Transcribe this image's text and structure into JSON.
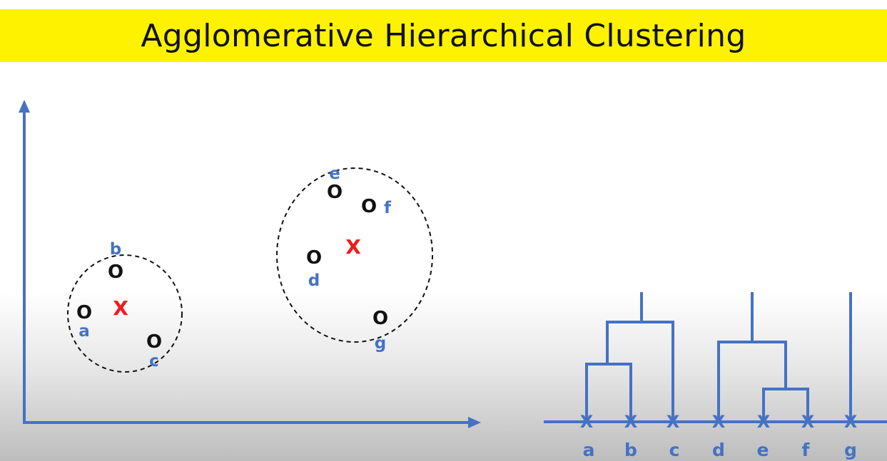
{
  "title": "Agglomerative Hierarchical Clustering",
  "colors": {
    "title_bg": "#fff200",
    "axis": "#4472c4",
    "label": "#4472c4",
    "point": "#111111",
    "centroid": "#ee1c1c",
    "dendrogram": "#4472c4"
  },
  "point_marker": "O",
  "centroid_marker": "X",
  "points": [
    {
      "id": "a",
      "label": "a"
    },
    {
      "id": "b",
      "label": "b"
    },
    {
      "id": "c",
      "label": "c"
    },
    {
      "id": "d",
      "label": "d"
    },
    {
      "id": "e",
      "label": "e"
    },
    {
      "id": "f",
      "label": "f"
    },
    {
      "id": "g",
      "label": "g"
    }
  ],
  "clusters": [
    {
      "members": [
        "a",
        "b",
        "c"
      ]
    },
    {
      "members": [
        "d",
        "e",
        "f",
        "g"
      ]
    }
  ],
  "dendrogram": {
    "leaves": [
      "a",
      "b",
      "c",
      "d",
      "e",
      "f",
      "g"
    ],
    "leaf_marker": "X",
    "merges": [
      {
        "join": [
          "a",
          "b"
        ]
      },
      {
        "join": [
          "ab",
          "c"
        ]
      },
      {
        "join": [
          "e",
          "f"
        ]
      },
      {
        "join": [
          "d",
          "ef"
        ]
      }
    ]
  }
}
